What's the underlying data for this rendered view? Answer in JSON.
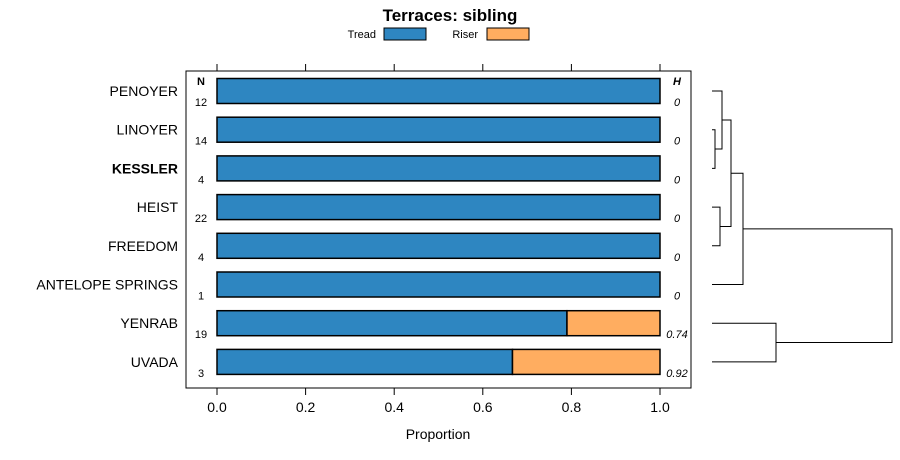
{
  "chart_data": {
    "type": "bar",
    "stacked": true,
    "orientation": "horizontal",
    "title": "Terraces: sibling",
    "xlabel": "Proportion",
    "ylabel": "",
    "xlim": [
      0,
      1
    ],
    "x_ticks": [
      "0.0",
      "0.2",
      "0.4",
      "0.6",
      "0.8",
      "1.0"
    ],
    "legend": {
      "position": "top",
      "items": [
        "Tread",
        "Riser"
      ]
    },
    "n_header": "N",
    "h_header": "H",
    "highlight": "KESSLER",
    "categories": [
      "PENOYER",
      "LINOYER",
      "KESSLER",
      "HEIST",
      "FREEDOM",
      "ANTELOPE SPRINGS",
      "YENRAB",
      "UVADA"
    ],
    "n": [
      "12",
      "14",
      "4",
      "22",
      "4",
      "1",
      "19",
      "3"
    ],
    "h": [
      "0",
      "0",
      "0",
      "0",
      "0",
      "0",
      "0.74",
      "0.92"
    ],
    "series": [
      {
        "name": "Tread",
        "color": "#2e86c1",
        "values": [
          1.0,
          1.0,
          1.0,
          1.0,
          1.0,
          1.0,
          0.79,
          0.667
        ]
      },
      {
        "name": "Riser",
        "color": "#ffad60",
        "values": [
          0.0,
          0.0,
          0.0,
          0.0,
          0.0,
          0.0,
          0.21,
          0.333
        ]
      }
    ],
    "dendrogram": "hierarchical clustering of categories shown at right"
  }
}
